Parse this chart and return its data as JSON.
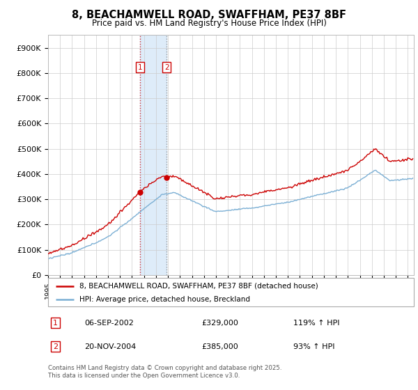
{
  "title": "8, BEACHAMWELL ROAD, SWAFFHAM, PE37 8BF",
  "subtitle": "Price paid vs. HM Land Registry's House Price Index (HPI)",
  "background_color": "#ffffff",
  "plot_bg_color": "#ffffff",
  "grid_color": "#cccccc",
  "hpi_line_color": "#7bafd4",
  "price_line_color": "#cc0000",
  "shade_color": "#d0e4f7",
  "sale1_date_str": "06-SEP-2002",
  "sale1_price": 329000,
  "sale1_hpi_pct": "119% ↑ HPI",
  "sale2_date_str": "20-NOV-2004",
  "sale2_price": 385000,
  "sale2_hpi_pct": "93% ↑ HPI",
  "legend_line1": "8, BEACHAMWELL ROAD, SWAFFHAM, PE37 8BF (detached house)",
  "legend_line2": "HPI: Average price, detached house, Breckland",
  "footnote": "Contains HM Land Registry data © Crown copyright and database right 2025.\nThis data is licensed under the Open Government Licence v3.0.",
  "ylim": [
    0,
    950000
  ],
  "yticks": [
    0,
    100000,
    200000,
    300000,
    400000,
    500000,
    600000,
    700000,
    800000,
    900000
  ],
  "ytick_labels": [
    "£0",
    "£100K",
    "£200K",
    "£300K",
    "£400K",
    "£500K",
    "£600K",
    "£700K",
    "£800K",
    "£900K"
  ],
  "sale1_year": 2002.68,
  "sale2_year": 2004.89,
  "xmin": 1995.0,
  "xmax": 2025.5
}
